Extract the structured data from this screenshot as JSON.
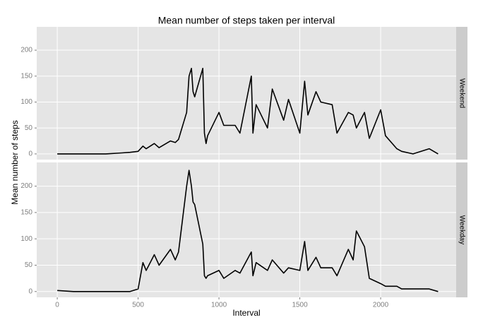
{
  "chart_data": {
    "type": "line",
    "title": "Mean number of steps taken per interval",
    "x_label": "Interval",
    "y_label": "Mean number of steps",
    "x": [
      0,
      100,
      200,
      300,
      400,
      450,
      500,
      530,
      550,
      600,
      630,
      700,
      730,
      750,
      800,
      815,
      830,
      840,
      850,
      900,
      910,
      920,
      930,
      1000,
      1030,
      1100,
      1130,
      1200,
      1210,
      1230,
      1300,
      1330,
      1400,
      1430,
      1500,
      1530,
      1550,
      1600,
      1630,
      1700,
      1730,
      1800,
      1830,
      1850,
      1900,
      1930,
      2000,
      2030,
      2100,
      2130,
      2200,
      2300,
      2355
    ],
    "series": [
      {
        "name": "Weekend",
        "color": "#000000",
        "values": [
          0,
          0,
          0,
          0,
          2,
          3,
          5,
          15,
          10,
          20,
          12,
          25,
          22,
          28,
          80,
          150,
          165,
          120,
          110,
          165,
          40,
          20,
          35,
          80,
          55,
          55,
          40,
          150,
          40,
          95,
          50,
          125,
          65,
          105,
          40,
          140,
          75,
          120,
          100,
          95,
          40,
          80,
          75,
          50,
          80,
          30,
          85,
          35,
          10,
          5,
          0,
          10,
          0
        ]
      },
      {
        "name": "Weekday",
        "color": "#000000",
        "values": [
          2,
          0,
          0,
          0,
          0,
          0,
          5,
          55,
          40,
          70,
          50,
          80,
          60,
          75,
          200,
          230,
          200,
          170,
          165,
          90,
          30,
          25,
          30,
          40,
          25,
          40,
          35,
          75,
          30,
          55,
          40,
          60,
          35,
          45,
          40,
          95,
          40,
          65,
          45,
          45,
          30,
          80,
          60,
          115,
          85,
          25,
          15,
          10,
          10,
          5,
          5,
          5,
          0
        ]
      }
    ],
    "xlim": [
      -127,
      2467
    ],
    "xticks": [
      0,
      500,
      1000,
      1500,
      2000
    ],
    "ylim": [
      -11,
      245
    ],
    "yticks": [
      0,
      50,
      100,
      150,
      200
    ],
    "grid": true,
    "facet": true
  }
}
